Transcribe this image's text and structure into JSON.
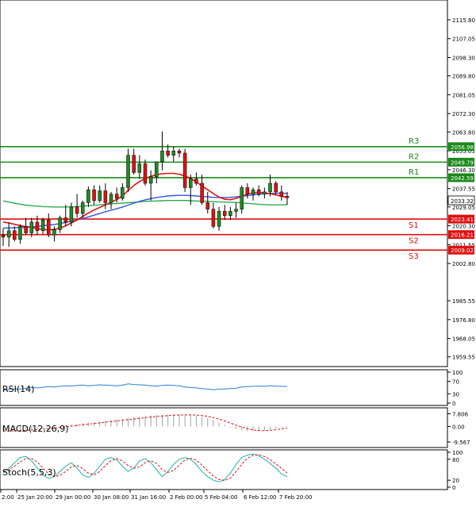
{
  "colors": {
    "background": "#ffffff",
    "axis": "#000000",
    "grid_text": "#000000",
    "candle_up": "#1f8a24",
    "candle_down": "#e01010",
    "resistance": "#1a8a1a",
    "support": "#e01010",
    "ma_fast": "#e01010",
    "ma_mid": "#3355dd",
    "ma_slow": "#2eaa50",
    "rsi": "#2a7fd4",
    "macd_hist": "#a0a0a0",
    "macd_signal": "#e01010",
    "stoch_main": "#20b0b0",
    "stoch_signal": "#e01010",
    "current_price_bg": "#ffffff"
  },
  "chart_data": [
    {
      "type": "candlestick",
      "panel": "price",
      "title": "",
      "ylim": [
        1956.5,
        2123.5
      ],
      "y_ticks": [
        "2115.80",
        "2107.05",
        "2098.30",
        "2089.80",
        "2081.05",
        "2072.30",
        "2063.80",
        "2055.05",
        "2046.30",
        "2037.55",
        "2029.05",
        "2020.30",
        "2011.55",
        "2002.80",
        "1985.55",
        "1976.80",
        "1968.05",
        "1959.55"
      ],
      "x_labels": [
        "2:00",
        "25 Jan 20:00",
        "29 Jan 00:00",
        "30 Jan 08:00",
        "31 Jan 16:00",
        "2 Feb 00:00",
        "5 Feb 04:00",
        "6 Feb 12:00",
        "7 Feb 20:00"
      ],
      "current_price": "2033.32",
      "levels": [
        {
          "name": "R3",
          "value": 2056.98,
          "label": "2056.98",
          "kind": "resistance"
        },
        {
          "name": "R2",
          "value": 2049.79,
          "label": "2049.79",
          "kind": "resistance"
        },
        {
          "name": "R1",
          "value": 2042.59,
          "label": "2042.59",
          "kind": "resistance"
        },
        {
          "name": "S1",
          "value": 2023.41,
          "label": "2023.41",
          "kind": "support"
        },
        {
          "name": "S2",
          "value": 2016.21,
          "label": "2016.21",
          "kind": "support"
        },
        {
          "name": "S3",
          "value": 2009.02,
          "label": "2009.02",
          "kind": "support"
        }
      ],
      "candles": [
        {
          "o": 2016.0,
          "h": 2019.0,
          "l": 2011.0,
          "c": 2015.0
        },
        {
          "o": 2015.0,
          "h": 2022.0,
          "l": 2010.5,
          "c": 2018.0
        },
        {
          "o": 2018.0,
          "h": 2020.0,
          "l": 2013.0,
          "c": 2014.0
        },
        {
          "o": 2014.0,
          "h": 2021.0,
          "l": 2012.0,
          "c": 2020.0
        },
        {
          "o": 2020.0,
          "h": 2024.0,
          "l": 2016.0,
          "c": 2017.0
        },
        {
          "o": 2017.0,
          "h": 2024.0,
          "l": 2015.0,
          "c": 2022.0
        },
        {
          "o": 2022.0,
          "h": 2025.0,
          "l": 2016.0,
          "c": 2018.0
        },
        {
          "o": 2018.0,
          "h": 2024.0,
          "l": 2016.5,
          "c": 2023.0
        },
        {
          "o": 2023.0,
          "h": 2026.0,
          "l": 2015.0,
          "c": 2016.0
        },
        {
          "o": 2016.0,
          "h": 2020.0,
          "l": 2013.0,
          "c": 2018.5
        },
        {
          "o": 2018.5,
          "h": 2025.0,
          "l": 2017.0,
          "c": 2024.0
        },
        {
          "o": 2024.0,
          "h": 2030.0,
          "l": 2020.0,
          "c": 2022.0
        },
        {
          "o": 2022.0,
          "h": 2031.0,
          "l": 2020.0,
          "c": 2029.0
        },
        {
          "o": 2029.0,
          "h": 2035.0,
          "l": 2024.0,
          "c": 2026.0
        },
        {
          "o": 2026.0,
          "h": 2032.0,
          "l": 2024.0,
          "c": 2031.0
        },
        {
          "o": 2031.0,
          "h": 2038.5,
          "l": 2029.0,
          "c": 2037.0
        },
        {
          "o": 2037.0,
          "h": 2039.0,
          "l": 2030.0,
          "c": 2032.0
        },
        {
          "o": 2032.0,
          "h": 2039.0,
          "l": 2031.0,
          "c": 2036.5
        },
        {
          "o": 2036.5,
          "h": 2040.0,
          "l": 2028.0,
          "c": 2031.0
        },
        {
          "o": 2031.0,
          "h": 2036.0,
          "l": 2028.0,
          "c": 2035.0
        },
        {
          "o": 2035.0,
          "h": 2038.0,
          "l": 2031.0,
          "c": 2033.0
        },
        {
          "o": 2033.0,
          "h": 2040.0,
          "l": 2032.0,
          "c": 2038.0
        },
        {
          "o": 2038.0,
          "h": 2056.0,
          "l": 2036.0,
          "c": 2053.0
        },
        {
          "o": 2053.0,
          "h": 2056.0,
          "l": 2044.0,
          "c": 2045.0
        },
        {
          "o": 2045.0,
          "h": 2053.0,
          "l": 2042.0,
          "c": 2049.0
        },
        {
          "o": 2049.0,
          "h": 2051.0,
          "l": 2039.0,
          "c": 2040.0
        },
        {
          "o": 2040.0,
          "h": 2046.0,
          "l": 2032.0,
          "c": 2043.0
        },
        {
          "o": 2043.0,
          "h": 2050.0,
          "l": 2040.0,
          "c": 2050.0
        },
        {
          "o": 2050.0,
          "h": 2064.0,
          "l": 2046.0,
          "c": 2055.0
        },
        {
          "o": 2055.0,
          "h": 2058.0,
          "l": 2052.0,
          "c": 2053.0
        },
        {
          "o": 2053.0,
          "h": 2057.0,
          "l": 2050.0,
          "c": 2055.0
        },
        {
          "o": 2055.0,
          "h": 2056.0,
          "l": 2052.0,
          "c": 2054.0
        },
        {
          "o": 2054.0,
          "h": 2056.0,
          "l": 2036.0,
          "c": 2038.0
        },
        {
          "o": 2038.0,
          "h": 2044.0,
          "l": 2030.0,
          "c": 2042.0
        },
        {
          "o": 2042.0,
          "h": 2045.0,
          "l": 2039.0,
          "c": 2040.0
        },
        {
          "o": 2040.0,
          "h": 2044.0,
          "l": 2030.0,
          "c": 2031.0
        },
        {
          "o": 2031.0,
          "h": 2036.0,
          "l": 2026.0,
          "c": 2028.0
        },
        {
          "o": 2028.0,
          "h": 2031.0,
          "l": 2019.0,
          "c": 2020.0
        },
        {
          "o": 2020.0,
          "h": 2029.0,
          "l": 2018.0,
          "c": 2027.0
        },
        {
          "o": 2027.0,
          "h": 2030.0,
          "l": 2023.0,
          "c": 2025.0
        },
        {
          "o": 2025.0,
          "h": 2029.0,
          "l": 2023.0,
          "c": 2027.0
        },
        {
          "o": 2027.0,
          "h": 2031.0,
          "l": 2024.0,
          "c": 2028.0
        },
        {
          "o": 2028.0,
          "h": 2039.0,
          "l": 2026.0,
          "c": 2038.0
        },
        {
          "o": 2038.0,
          "h": 2040.0,
          "l": 2033.0,
          "c": 2035.0
        },
        {
          "o": 2035.0,
          "h": 2038.0,
          "l": 2032.0,
          "c": 2037.0
        },
        {
          "o": 2037.0,
          "h": 2039.0,
          "l": 2034.0,
          "c": 2035.0
        },
        {
          "o": 2035.0,
          "h": 2038.0,
          "l": 2033.0,
          "c": 2036.0
        },
        {
          "o": 2036.0,
          "h": 2044.0,
          "l": 2034.0,
          "c": 2040.0
        },
        {
          "o": 2040.0,
          "h": 2041.0,
          "l": 2035.0,
          "c": 2036.0
        },
        {
          "o": 2036.0,
          "h": 2039.0,
          "l": 2032.0,
          "c": 2034.0
        },
        {
          "o": 2034.0,
          "h": 2036.0,
          "l": 2030.0,
          "c": 2033.3
        }
      ],
      "ma_fast_values": [
        2022,
        2021.6,
        2021,
        2020.4,
        2019.9,
        2019.5,
        2019,
        2018.6,
        2018.4,
        2018.6,
        2019.2,
        2020.3,
        2021.6,
        2023,
        2024.6,
        2026.2,
        2027.6,
        2028.8,
        2030,
        2031.2,
        2032.5,
        2034.2,
        2036.6,
        2039,
        2040.8,
        2042.2,
        2043.2,
        2044,
        2044.4,
        2044.6,
        2044.6,
        2044.2,
        2043.4,
        2042.2,
        2040.6,
        2038.8,
        2037,
        2035.2,
        2033.6,
        2032.6,
        2032.4,
        2033,
        2034,
        2035,
        2035.6,
        2035.8,
        2035.6,
        2035.2,
        2034.6,
        2034,
        2033.4
      ],
      "ma_mid_values": [
        2019.2,
        2019.3,
        2019.4,
        2019.5,
        2019.6,
        2019.8,
        2020,
        2020.3,
        2020.6,
        2020.9,
        2021.3,
        2021.8,
        2022.4,
        2023,
        2023.7,
        2024.4,
        2025.2,
        2026,
        2026.8,
        2027.5,
        2028.2,
        2029,
        2029.9,
        2030.8,
        2031.6,
        2032.3,
        2032.9,
        2033.4,
        2033.8,
        2034.1,
        2034.3,
        2034.4,
        2034.4,
        2034.3,
        2034.1,
        2033.9,
        2033.7,
        2033.5,
        2033.4,
        2033.4,
        2033.5,
        2033.7,
        2034,
        2034.3,
        2034.6,
        2034.9,
        2035.1,
        2035.3,
        2035.4,
        2035.4,
        2035.3
      ],
      "ma_slow_values": [
        2031.8,
        2031.3,
        2030.8,
        2030.3,
        2029.9,
        2029.6,
        2029.4,
        2029.2,
        2029.1,
        2029.0,
        2029.0,
        2029.0,
        2029.1,
        2029.2,
        2029.4,
        2029.6,
        2029.8,
        2030.0,
        2030.2,
        2030.4,
        2030.6,
        2030.8,
        2031.0,
        2031.2,
        2031.4,
        2031.6,
        2031.7,
        2031.8,
        2031.9,
        2032.0,
        2032.0,
        2032.0,
        2032.0,
        2031.9,
        2031.8,
        2031.7,
        2031.6,
        2031.5,
        2031.4,
        2031.3,
        2031.2,
        2031.1,
        2030.9,
        2030.7,
        2030.5,
        2030.3,
        2030.1,
        2030.0,
        2030.0,
        2030.0,
        2030.1
      ]
    },
    {
      "type": "line",
      "panel": "rsi",
      "label": "RSI(14)",
      "ylim": [
        0,
        100
      ],
      "y_ticks": [
        "100",
        "70",
        "30",
        "0"
      ],
      "values": [
        42,
        44,
        46,
        45,
        48,
        50,
        49,
        51,
        53,
        52,
        54,
        56,
        55,
        57,
        58,
        56,
        57,
        59,
        58,
        57,
        56,
        58,
        62,
        60,
        59,
        58,
        56,
        55,
        57,
        58,
        57,
        56,
        52,
        50,
        49,
        47,
        45,
        43,
        45,
        46,
        47,
        48,
        52,
        53,
        54,
        55,
        54,
        56,
        55,
        54,
        53
      ]
    },
    {
      "type": "bar_line",
      "panel": "macd",
      "label": "MACD(12,26,9)",
      "ylim": [
        -11.5,
        10.0
      ],
      "y_ticks": [
        "7.806",
        "0.00",
        "-9.567"
      ],
      "histogram": [
        -3.2,
        -3.0,
        -2.6,
        -2.4,
        -2.0,
        -1.6,
        -1.2,
        -0.8,
        -0.4,
        0.0,
        0.4,
        0.8,
        1.2,
        1.6,
        2.0,
        2.4,
        2.8,
        3.2,
        3.6,
        4.0,
        4.4,
        4.8,
        5.2,
        5.6,
        6.0,
        6.4,
        6.8,
        7.0,
        7.2,
        7.4,
        7.5,
        7.5,
        7.4,
        7.1,
        6.6,
        5.9,
        5.0,
        3.8,
        2.4,
        1.0,
        -0.4,
        -1.6,
        -2.4,
        -2.8,
        -2.9,
        -2.7,
        -2.3,
        -1.8,
        -1.3,
        -0.8,
        -0.4
      ],
      "signal": [
        -2.8,
        -2.8,
        -2.7,
        -2.6,
        -2.4,
        -2.2,
        -1.9,
        -1.6,
        -1.3,
        -1.0,
        -0.6,
        -0.2,
        0.2,
        0.6,
        1.0,
        1.4,
        1.8,
        2.2,
        2.6,
        3.0,
        3.4,
        3.8,
        4.2,
        4.6,
        5.0,
        5.4,
        5.8,
        6.1,
        6.4,
        6.7,
        6.9,
        7.0,
        7.1,
        7.1,
        7.0,
        6.7,
        6.2,
        5.5,
        4.6,
        3.4,
        2.1,
        0.8,
        -0.4,
        -1.4,
        -2.1,
        -2.5,
        -2.6,
        -2.4,
        -2.0,
        -1.5,
        -1.0
      ]
    },
    {
      "type": "line",
      "panel": "stoch",
      "label": "Stoch(5,5,3)",
      "ylim": [
        0,
        100
      ],
      "y_ticks": [
        "100",
        "80",
        "20",
        "0"
      ],
      "main": [
        40,
        55,
        70,
        85,
        88,
        75,
        55,
        35,
        25,
        30,
        45,
        60,
        70,
        55,
        35,
        28,
        40,
        60,
        80,
        85,
        78,
        60,
        45,
        55,
        75,
        82,
        70,
        50,
        30,
        45,
        65,
        80,
        85,
        80,
        65,
        45,
        30,
        20,
        15,
        22,
        40,
        65,
        85,
        92,
        95,
        90,
        80,
        68,
        55,
        38,
        30
      ],
      "signal": [
        45,
        50,
        60,
        72,
        82,
        82,
        72,
        55,
        38,
        30,
        34,
        45,
        58,
        62,
        53,
        40,
        35,
        45,
        62,
        76,
        82,
        75,
        62,
        54,
        58,
        70,
        76,
        68,
        50,
        42,
        48,
        63,
        78,
        83,
        78,
        63,
        47,
        32,
        22,
        19,
        26,
        45,
        65,
        83,
        91,
        93,
        88,
        79,
        67,
        54,
        41
      ]
    }
  ]
}
